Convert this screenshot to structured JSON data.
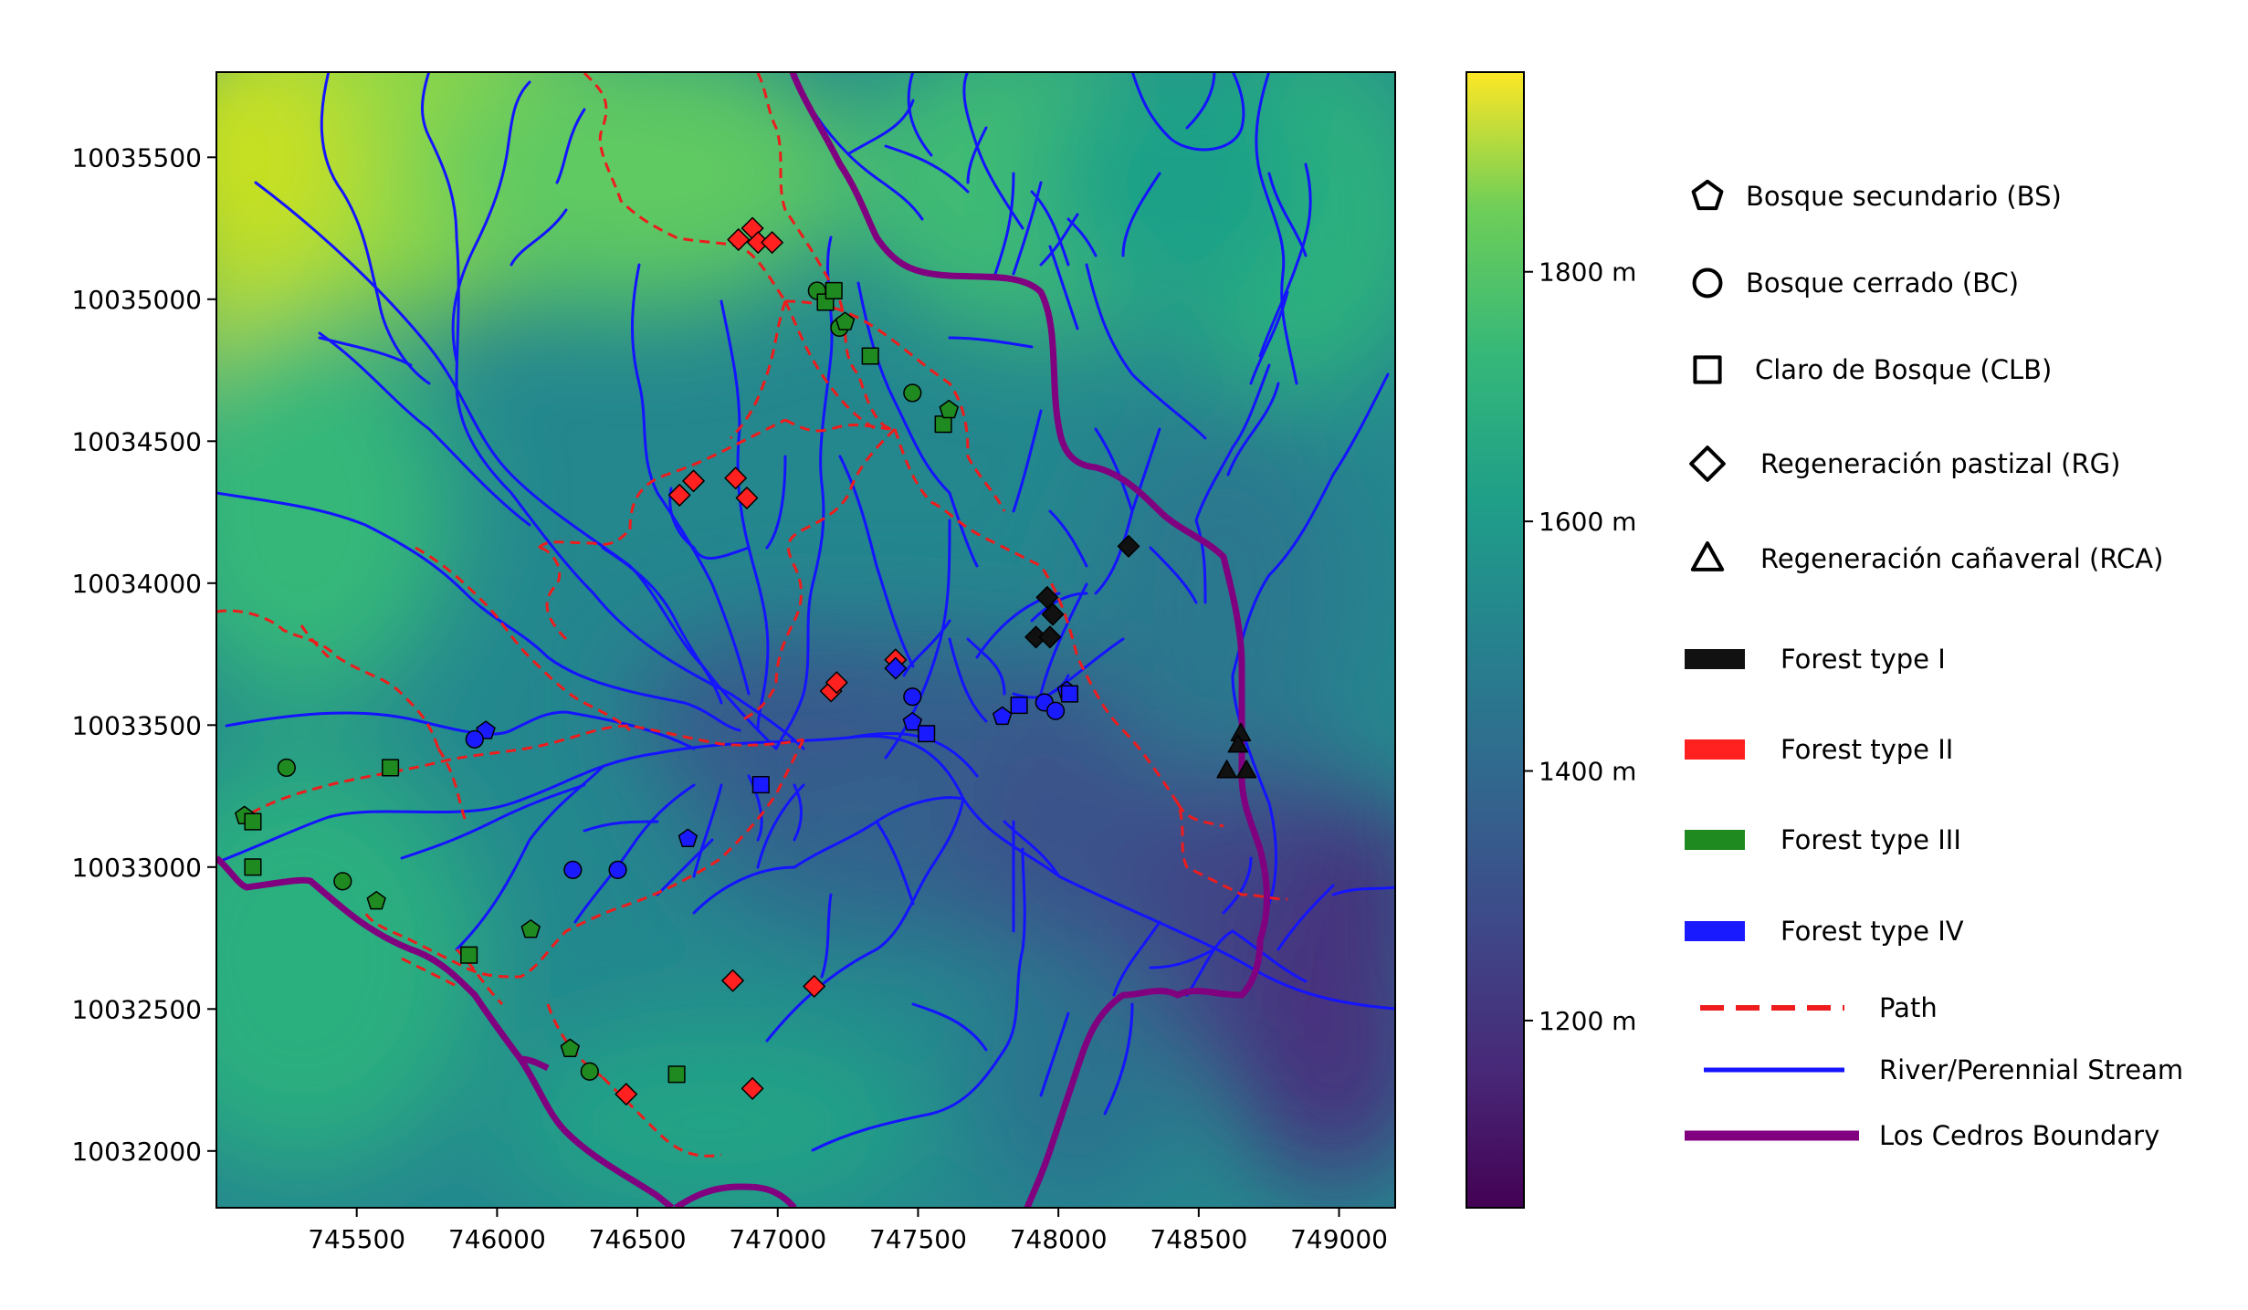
{
  "map": {
    "x_ticks": [
      "745500",
      "746000",
      "746500",
      "747000",
      "747500",
      "748000",
      "748500",
      "749000"
    ],
    "y_ticks": [
      "10035500",
      "10035000",
      "10034500",
      "10034000",
      "10033500",
      "10033000",
      "10032500",
      "10032000"
    ],
    "extent": {
      "x": [
        745000,
        749200
      ],
      "y": [
        10031800,
        10035800
      ]
    },
    "colormap": "viridis",
    "colorbar": {
      "range_m": [
        1050,
        1960
      ],
      "ticks": [
        {
          "value": 1800,
          "label": "1800 m"
        },
        {
          "value": 1600,
          "label": "1600 m"
        },
        {
          "value": 1400,
          "label": "1400 m"
        },
        {
          "value": 1200,
          "label": "1200 m"
        }
      ]
    }
  },
  "legend": {
    "markers": [
      {
        "shape": "pentagon",
        "label": "Bosque secundario (BS)"
      },
      {
        "shape": "circle",
        "label": "Bosque cerrado (BC)"
      },
      {
        "shape": "square",
        "label": "Claro de Bosque (CLB)"
      },
      {
        "shape": "diamond",
        "label": "Regeneración pastizal (RG)"
      },
      {
        "shape": "triangle",
        "label": "Regeneración cañaveral (RCA)"
      }
    ],
    "forest_types": [
      {
        "label": "Forest type I",
        "color": "#111111"
      },
      {
        "label": "Forest type II",
        "color": "#ff2020"
      },
      {
        "label": "Forest type III",
        "color": "#1f8a1f"
      },
      {
        "label": "Forest type IV",
        "color": "#1a1aff"
      }
    ],
    "lines": [
      {
        "label": "Path",
        "color": "#ee1c1c",
        "style": "dashed"
      },
      {
        "label": "River/Perennial Stream",
        "color": "#1414ff",
        "style": "solid"
      },
      {
        "label": "Los Cedros Boundary",
        "color": "#800080",
        "style": "solid"
      }
    ]
  },
  "colors": {
    "type1": "#111111",
    "type2": "#ff2020",
    "type3": "#1f8a1f",
    "type4": "#1a1aff",
    "path": "#ee1c1c",
    "river": "#1414ff",
    "boundary": "#800080"
  },
  "sites": [
    {
      "x": 746860,
      "y": 10035210,
      "type": 2,
      "shape": "diamond"
    },
    {
      "x": 746910,
      "y": 10035250,
      "type": 2,
      "shape": "diamond"
    },
    {
      "x": 746930,
      "y": 10035200,
      "type": 2,
      "shape": "diamond"
    },
    {
      "x": 746980,
      "y": 10035200,
      "type": 2,
      "shape": "diamond"
    },
    {
      "x": 746650,
      "y": 10034310,
      "type": 2,
      "shape": "diamond"
    },
    {
      "x": 746700,
      "y": 10034360,
      "type": 2,
      "shape": "diamond"
    },
    {
      "x": 746850,
      "y": 10034370,
      "type": 2,
      "shape": "diamond"
    },
    {
      "x": 746890,
      "y": 10034300,
      "type": 2,
      "shape": "diamond"
    },
    {
      "x": 747190,
      "y": 10033620,
      "type": 2,
      "shape": "diamond"
    },
    {
      "x": 747210,
      "y": 10033650,
      "type": 2,
      "shape": "diamond"
    },
    {
      "x": 747420,
      "y": 10033730,
      "type": 2,
      "shape": "diamond"
    },
    {
      "x": 746840,
      "y": 10032600,
      "type": 2,
      "shape": "diamond"
    },
    {
      "x": 747130,
      "y": 10032580,
      "type": 2,
      "shape": "diamond"
    },
    {
      "x": 746460,
      "y": 10032200,
      "type": 2,
      "shape": "diamond"
    },
    {
      "x": 746910,
      "y": 10032220,
      "type": 2,
      "shape": "diamond"
    },
    {
      "x": 747140,
      "y": 10035030,
      "type": 3,
      "shape": "circle"
    },
    {
      "x": 747170,
      "y": 10034990,
      "type": 3,
      "shape": "square"
    },
    {
      "x": 747200,
      "y": 10035030,
      "type": 3,
      "shape": "square"
    },
    {
      "x": 747220,
      "y": 10034900,
      "type": 3,
      "shape": "circle"
    },
    {
      "x": 747240,
      "y": 10034920,
      "type": 3,
      "shape": "pentagon"
    },
    {
      "x": 747330,
      "y": 10034800,
      "type": 3,
      "shape": "square"
    },
    {
      "x": 747480,
      "y": 10034670,
      "type": 3,
      "shape": "circle"
    },
    {
      "x": 747590,
      "y": 10034560,
      "type": 3,
      "shape": "square"
    },
    {
      "x": 747610,
      "y": 10034610,
      "type": 3,
      "shape": "pentagon"
    },
    {
      "x": 745250,
      "y": 10033350,
      "type": 3,
      "shape": "circle"
    },
    {
      "x": 745620,
      "y": 10033350,
      "type": 3,
      "shape": "square"
    },
    {
      "x": 745100,
      "y": 10033180,
      "type": 3,
      "shape": "pentagon"
    },
    {
      "x": 745130,
      "y": 10033160,
      "type": 3,
      "shape": "square"
    },
    {
      "x": 745130,
      "y": 10033000,
      "type": 3,
      "shape": "square"
    },
    {
      "x": 745450,
      "y": 10032950,
      "type": 3,
      "shape": "circle"
    },
    {
      "x": 745570,
      "y": 10032880,
      "type": 3,
      "shape": "pentagon"
    },
    {
      "x": 745900,
      "y": 10032690,
      "type": 3,
      "shape": "square"
    },
    {
      "x": 746120,
      "y": 10032780,
      "type": 3,
      "shape": "pentagon"
    },
    {
      "x": 746260,
      "y": 10032360,
      "type": 3,
      "shape": "pentagon"
    },
    {
      "x": 746330,
      "y": 10032280,
      "type": 3,
      "shape": "circle"
    },
    {
      "x": 746640,
      "y": 10032270,
      "type": 3,
      "shape": "square"
    },
    {
      "x": 745960,
      "y": 10033480,
      "type": 4,
      "shape": "pentagon"
    },
    {
      "x": 745920,
      "y": 10033450,
      "type": 4,
      "shape": "circle"
    },
    {
      "x": 746270,
      "y": 10032990,
      "type": 4,
      "shape": "circle"
    },
    {
      "x": 746430,
      "y": 10032990,
      "type": 4,
      "shape": "circle"
    },
    {
      "x": 746680,
      "y": 10033100,
      "type": 4,
      "shape": "pentagon"
    },
    {
      "x": 746940,
      "y": 10033290,
      "type": 4,
      "shape": "square"
    },
    {
      "x": 747420,
      "y": 10033700,
      "type": 4,
      "shape": "diamond"
    },
    {
      "x": 747480,
      "y": 10033600,
      "type": 4,
      "shape": "circle"
    },
    {
      "x": 747480,
      "y": 10033510,
      "type": 4,
      "shape": "pentagon"
    },
    {
      "x": 747530,
      "y": 10033470,
      "type": 4,
      "shape": "square"
    },
    {
      "x": 747800,
      "y": 10033530,
      "type": 4,
      "shape": "pentagon"
    },
    {
      "x": 747860,
      "y": 10033570,
      "type": 4,
      "shape": "square"
    },
    {
      "x": 747950,
      "y": 10033580,
      "type": 4,
      "shape": "circle"
    },
    {
      "x": 747990,
      "y": 10033550,
      "type": 4,
      "shape": "circle"
    },
    {
      "x": 748030,
      "y": 10033620,
      "type": 4,
      "shape": "pentagon"
    },
    {
      "x": 748040,
      "y": 10033610,
      "type": 4,
      "shape": "square"
    },
    {
      "x": 748250,
      "y": 10034130,
      "type": 1,
      "shape": "diamond"
    },
    {
      "x": 747960,
      "y": 10033950,
      "type": 1,
      "shape": "diamond"
    },
    {
      "x": 747980,
      "y": 10033890,
      "type": 1,
      "shape": "diamond"
    },
    {
      "x": 747920,
      "y": 10033810,
      "type": 1,
      "shape": "diamond"
    },
    {
      "x": 747970,
      "y": 10033810,
      "type": 1,
      "shape": "diamond"
    },
    {
      "x": 748650,
      "y": 10033470,
      "type": 1,
      "shape": "triangle"
    },
    {
      "x": 748640,
      "y": 10033430,
      "type": 1,
      "shape": "triangle"
    },
    {
      "x": 748600,
      "y": 10033340,
      "type": 1,
      "shape": "triangle"
    },
    {
      "x": 748670,
      "y": 10033340,
      "type": 1,
      "shape": "triangle"
    }
  ]
}
